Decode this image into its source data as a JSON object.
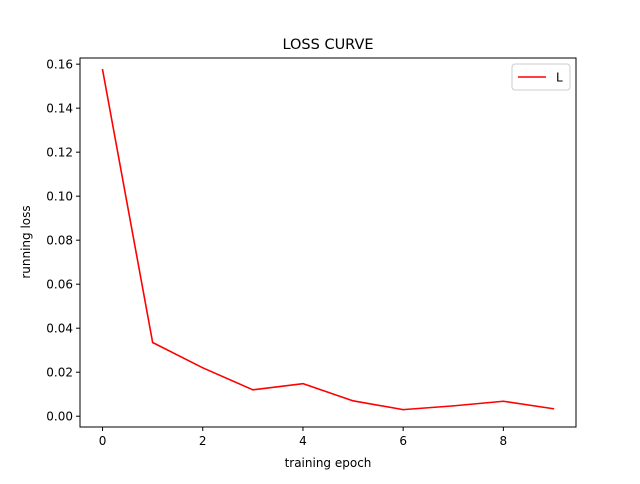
{
  "chart_data": {
    "type": "line",
    "title": "LOSS CURVE",
    "xlabel": "training epoch",
    "ylabel": "running loss",
    "xlim": [
      -0.45,
      9.45
    ],
    "ylim": [
      -0.0049,
      0.1628
    ],
    "xticks": [
      0,
      2,
      4,
      6,
      8
    ],
    "yticks": [
      0.0,
      0.02,
      0.04,
      0.06,
      0.08,
      0.1,
      0.12,
      0.14,
      0.16
    ],
    "xtick_labels": [
      "0",
      "2",
      "4",
      "6",
      "8"
    ],
    "ytick_labels": [
      "0.00",
      "0.02",
      "0.04",
      "0.06",
      "0.08",
      "0.10",
      "0.12",
      "0.14",
      "0.16"
    ],
    "grid": false,
    "legend_position": "top-right",
    "series": [
      {
        "name": "L",
        "color": "#ff0000",
        "x": [
          0,
          1,
          2,
          3,
          4,
          5,
          6,
          7,
          8,
          9
        ],
        "values": [
          0.1575,
          0.0335,
          0.022,
          0.012,
          0.0148,
          0.007,
          0.003,
          0.0047,
          0.0068,
          0.0034
        ]
      }
    ]
  }
}
